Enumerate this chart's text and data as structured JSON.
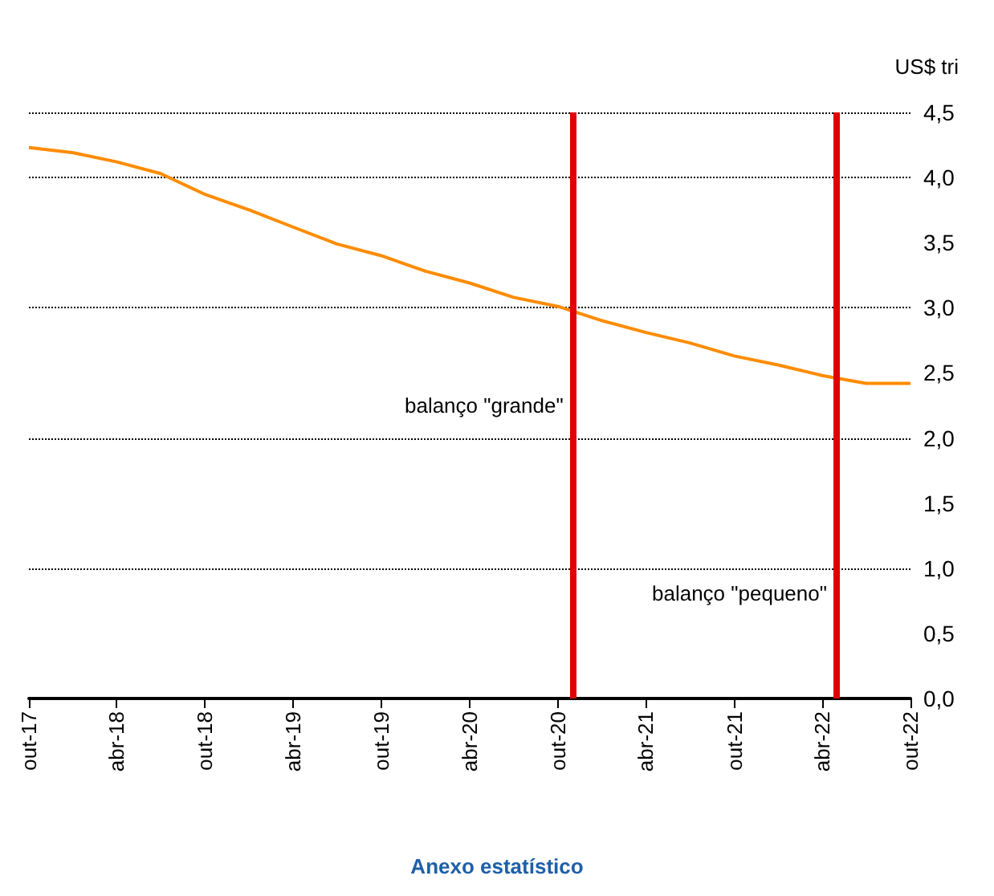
{
  "chart_data": {
    "type": "line",
    "ylabel": "US$ tri",
    "x": [
      "2017-10",
      "2018-01",
      "2018-04",
      "2018-07",
      "2018-10",
      "2019-01",
      "2019-04",
      "2019-07",
      "2019-10",
      "2020-01",
      "2020-04",
      "2020-07",
      "2020-10",
      "2021-01",
      "2021-04",
      "2021-07",
      "2021-10",
      "2022-01",
      "2022-04",
      "2022-07",
      "2022-10"
    ],
    "series": [
      {
        "color": "#ff8c00",
        "values": [
          4.23,
          4.19,
          4.12,
          4.03,
          3.87,
          3.75,
          3.62,
          3.49,
          3.4,
          3.28,
          3.19,
          3.08,
          3.01,
          2.9,
          2.81,
          2.73,
          2.63,
          2.56,
          2.48,
          2.42,
          2.42
        ]
      }
    ],
    "xlim": [
      "2017-10",
      "2022-10"
    ],
    "xticks": [
      {
        "value": "2017-10",
        "label": "out-17"
      },
      {
        "value": "2018-04",
        "label": "abr-18"
      },
      {
        "value": "2018-10",
        "label": "out-18"
      },
      {
        "value": "2019-04",
        "label": "abr-19"
      },
      {
        "value": "2019-10",
        "label": "out-19"
      },
      {
        "value": "2020-04",
        "label": "abr-20"
      },
      {
        "value": "2020-10",
        "label": "out-20"
      },
      {
        "value": "2021-04",
        "label": "abr-21"
      },
      {
        "value": "2021-10",
        "label": "out-21"
      },
      {
        "value": "2022-04",
        "label": "abr-22"
      },
      {
        "value": "2022-10",
        "label": "out-22"
      }
    ],
    "ylim": [
      0,
      4.5
    ],
    "yticks": [
      {
        "value": 0,
        "label": "0,0"
      },
      {
        "value": 0.5,
        "label": "0,5"
      },
      {
        "value": 1,
        "label": "1,0"
      },
      {
        "value": 1.5,
        "label": "1,5"
      },
      {
        "value": 2,
        "label": "2,0"
      },
      {
        "value": 2.5,
        "label": "2,5"
      },
      {
        "value": 3,
        "label": "3,0"
      },
      {
        "value": 3.5,
        "label": "3,5"
      },
      {
        "value": 4,
        "label": "4,0"
      },
      {
        "value": 4.5,
        "label": "4,5"
      }
    ],
    "grid": "y",
    "ref_lines": [
      {
        "axis": "x",
        "value": "2020-11",
        "color": "#e00000",
        "label": "balanço \"grande\""
      },
      {
        "axis": "x",
        "value": "2022-05",
        "color": "#e00000",
        "label": "balanço \"pequeno\""
      }
    ],
    "annotations": [
      "Anexo estatístico"
    ]
  }
}
